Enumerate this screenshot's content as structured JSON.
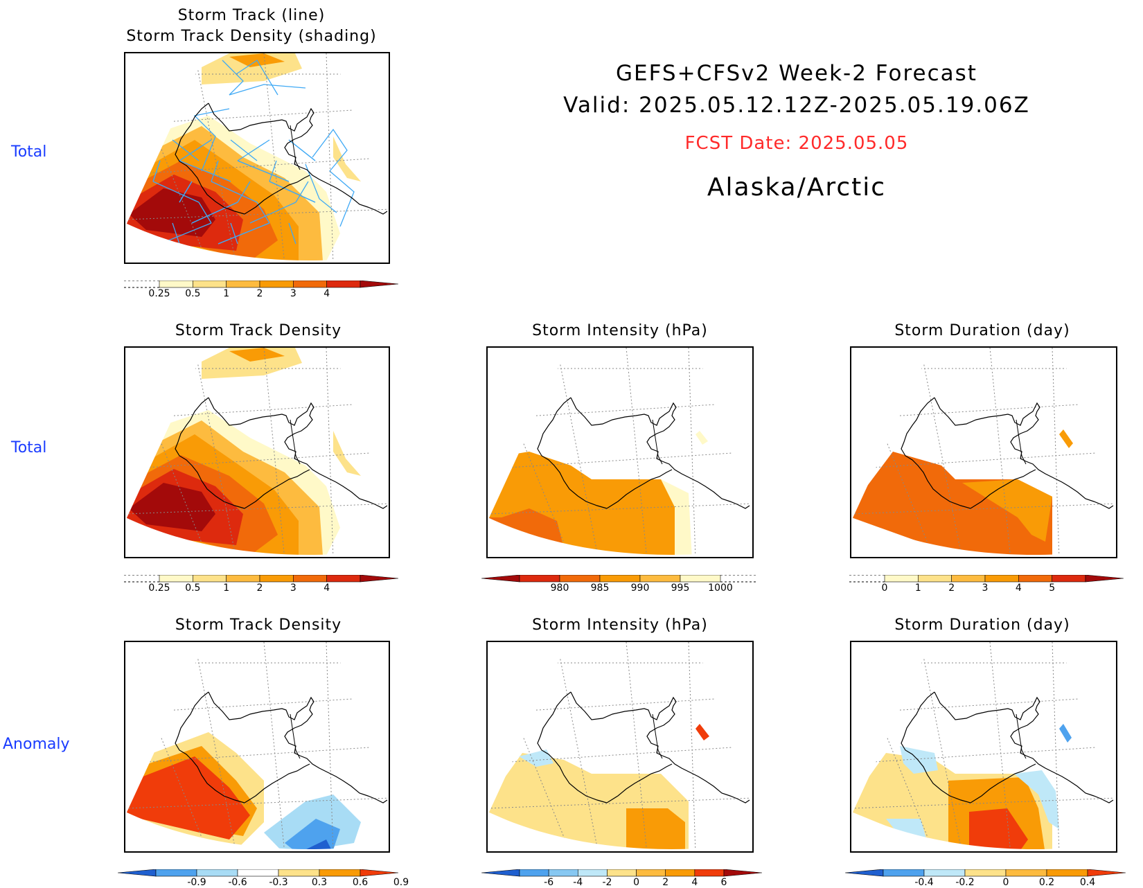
{
  "header": {
    "line1": "GEFS+CFSv2 Week-2 Forecast",
    "line2": "Valid: 2025.05.12.12Z-2025.05.19.06Z",
    "fcst_date": "FCST Date: 2025.05.05",
    "region": "Alaska/Arctic"
  },
  "row_labels": [
    "Total",
    "Total",
    "Anomaly"
  ],
  "colors": {
    "row_label": "#1a3cff",
    "fcst_date": "#ff2a2a",
    "track_line": "#3fa9f5"
  },
  "chart_data": [
    {
      "type": "heatmap",
      "title": "Storm Track (line)",
      "subtitle": "Storm Track Density (shading)",
      "colorbar": {
        "ticks": [
          "0.25",
          "0.5",
          "1",
          "2",
          "3",
          "4"
        ],
        "colors": [
          "#fff9c8",
          "#fde28a",
          "#fdbb3f",
          "#f99b06",
          "#f16a0a",
          "#dd2a0e",
          "#a30a0a"
        ]
      },
      "shading_bands": [
        0.25,
        0.5,
        1,
        2,
        3,
        4,
        4.5
      ],
      "overlay": "storm track lines"
    },
    {
      "type": "heatmap",
      "title": "Storm Track Density",
      "colorbar": {
        "ticks": [
          "0.25",
          "0.5",
          "1",
          "2",
          "3",
          "4"
        ],
        "colors": [
          "#fff9c8",
          "#fde28a",
          "#fdbb3f",
          "#f99b06",
          "#f16a0a",
          "#dd2a0e",
          "#a30a0a"
        ]
      },
      "shading_bands": [
        0.25,
        0.5,
        1,
        2,
        3,
        4,
        4.5
      ]
    },
    {
      "type": "heatmap",
      "title": "Storm Intensity (hPa)",
      "colorbar": {
        "ticks": [
          "980",
          "985",
          "990",
          "995",
          "1000"
        ],
        "colors": [
          "#a30a0a",
          "#dd2a0e",
          "#f16a0a",
          "#f99b06",
          "#fdbb3f",
          "#fff9c8"
        ]
      },
      "shading_bands": [
        990,
        995,
        1000
      ]
    },
    {
      "type": "heatmap",
      "title": "Storm Duration (day)",
      "colorbar": {
        "ticks": [
          "0",
          "1",
          "2",
          "3",
          "4",
          "5"
        ],
        "colors": [
          "#fff9c8",
          "#fde28a",
          "#fdbb3f",
          "#f99b06",
          "#f16a0a",
          "#dd2a0e",
          "#a30a0a"
        ]
      },
      "shading_bands": [
        2,
        3
      ]
    },
    {
      "type": "heatmap",
      "title": "Storm Track Density",
      "colorbar": {
        "ticks": [
          "-0.9",
          "-0.6",
          "-0.3",
          "0.3",
          "0.6",
          "0.9"
        ],
        "colors": [
          "#1f5fcf",
          "#4ea2ee",
          "#a8dcf5",
          "#ffffff",
          "#fde28a",
          "#f99b06",
          "#f03c0a"
        ]
      },
      "shading_bands": [
        -0.9,
        -0.6,
        -0.3,
        0.3,
        0.6,
        0.9
      ]
    },
    {
      "type": "heatmap",
      "title": "Storm Intensity (hPa)",
      "colorbar": {
        "ticks": [
          "-6",
          "-4",
          "-2",
          "0",
          "2",
          "4",
          "6"
        ],
        "colors": [
          "#1f5fcf",
          "#4ea2ee",
          "#87c8f2",
          "#bfe8f8",
          "#fde28a",
          "#fdbb3f",
          "#f99b06",
          "#f03c0a",
          "#a30a0a"
        ]
      },
      "shading_bands": [
        -2,
        0,
        2,
        4
      ]
    },
    {
      "type": "heatmap",
      "title": "Storm Duration (day)",
      "colorbar": {
        "ticks": [
          "-0.4",
          "-0.2",
          "0",
          "0.2",
          "0.4"
        ],
        "colors": [
          "#1f5fcf",
          "#4ea2ee",
          "#bfe8f8",
          "#fde28a",
          "#fdbb3f",
          "#f99b06",
          "#f03c0a"
        ]
      },
      "shading_bands": [
        -0.4,
        -0.2,
        0,
        0.2,
        0.4
      ]
    }
  ]
}
